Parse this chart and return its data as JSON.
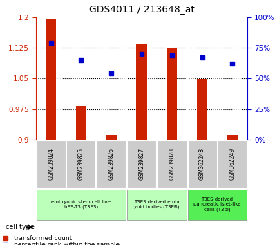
{
  "title": "GDS4011 / 213648_at",
  "samples": [
    "GSM239824",
    "GSM239825",
    "GSM239826",
    "GSM239827",
    "GSM239828",
    "GSM362248",
    "GSM362249"
  ],
  "transformed_count": [
    1.196,
    0.983,
    0.912,
    1.133,
    1.124,
    1.049,
    0.912
  ],
  "percentile_rank": [
    79,
    65,
    54,
    70,
    69,
    67,
    62
  ],
  "ylim_left": [
    0.9,
    1.2
  ],
  "ylim_right": [
    0,
    100
  ],
  "yticks_left": [
    0.9,
    0.975,
    1.05,
    1.125,
    1.2
  ],
  "yticks_right": [
    0,
    25,
    50,
    75,
    100
  ],
  "ytick_labels_left": [
    "0.9",
    "0.975",
    "1.05",
    "1.125",
    "1.2"
  ],
  "ytick_labels_right": [
    "0%",
    "25%",
    "50%",
    "75%",
    "100%"
  ],
  "bar_color": "#cc2200",
  "dot_color": "#0000cc",
  "grid_color": "#000000",
  "groups": [
    {
      "label": "embryonic stem cell line\nhES-T3 (T3ES)",
      "start": 0,
      "end": 2,
      "color": "#ccffcc"
    },
    {
      "label": "T3ES derived embr\nyoid bodies (T3EB)",
      "start": 3,
      "end": 4,
      "color": "#ccffcc"
    },
    {
      "label": "T3ES derived\npancreatic islet-like\ncells (T3pi)",
      "start": 5,
      "end": 6,
      "color": "#66ff66"
    }
  ],
  "xlabel_color": "#cc2200",
  "right_axis_color": "#0000cc",
  "tick_label_bg": "#dddddd",
  "legend_red_label": "transformed count",
  "legend_blue_label": "percentile rank within the sample",
  "cell_type_label": "cell type"
}
